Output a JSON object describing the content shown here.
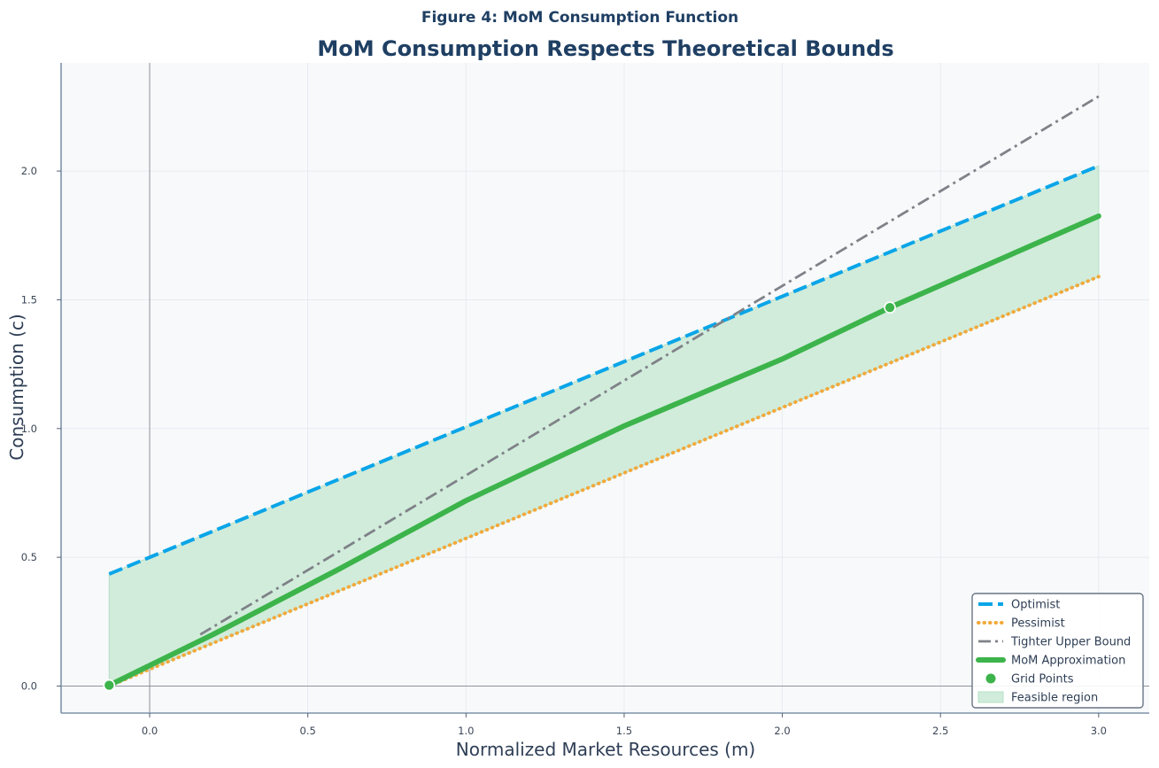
{
  "figure_title": "Figure 4: MoM Consumption Function",
  "colors": {
    "optimist": "#0aa5e8",
    "pessimist": "#f2a93b",
    "tighter": "#7f8288",
    "mom": "#3cb44b",
    "feasible_fill": "#d1ecdb",
    "plot_bg": "#f7f9fb",
    "spine": "#7f93aa",
    "title": "#1f3f63"
  },
  "chart_data": {
    "type": "line",
    "title": "MoM Consumption Respects Theoretical Bounds",
    "xlabel": "Normalized Market Resources (m)",
    "ylabel": "Consumption (c)",
    "xlim": [
      -0.28,
      3.16
    ],
    "ylim": [
      -0.105,
      2.42
    ],
    "xticks": [
      0.0,
      0.5,
      1.0,
      1.5,
      2.0,
      2.5,
      3.0
    ],
    "yticks": [
      0.0,
      0.5,
      1.0,
      1.5,
      2.0
    ],
    "grid": true,
    "legend_position": "bottom-right",
    "reference_lines": {
      "x": 0,
      "y": 0
    },
    "series": [
      {
        "name": "Optimist",
        "style": "dashed",
        "x": [
          -0.128,
          3.0
        ],
        "y": [
          0.435,
          2.02
        ]
      },
      {
        "name": "Pessimist",
        "style": "dotted",
        "x": [
          -0.128,
          3.0
        ],
        "y": [
          0.0,
          1.59
        ]
      },
      {
        "name": "Tighter Upper Bound",
        "style": "dashdot",
        "x": [
          0.16,
          3.0
        ],
        "y": [
          0.2,
          2.29
        ]
      },
      {
        "name": "MoM Approximation",
        "style": "solid",
        "x": [
          -0.128,
          0.2,
          0.6,
          1.0,
          1.5,
          2.0,
          2.34,
          3.0
        ],
        "y": [
          0.003,
          0.2,
          0.455,
          0.72,
          1.01,
          1.27,
          1.47,
          1.825
        ]
      }
    ],
    "grid_points": {
      "name": "Grid Points",
      "x": [
        -0.128,
        2.34
      ],
      "y": [
        0.003,
        1.47
      ]
    },
    "feasible_region": {
      "name": "Feasible region",
      "x": [
        -0.128,
        3.0
      ],
      "lower": [
        0.0,
        1.59
      ],
      "upper": [
        0.435,
        2.02
      ]
    }
  }
}
